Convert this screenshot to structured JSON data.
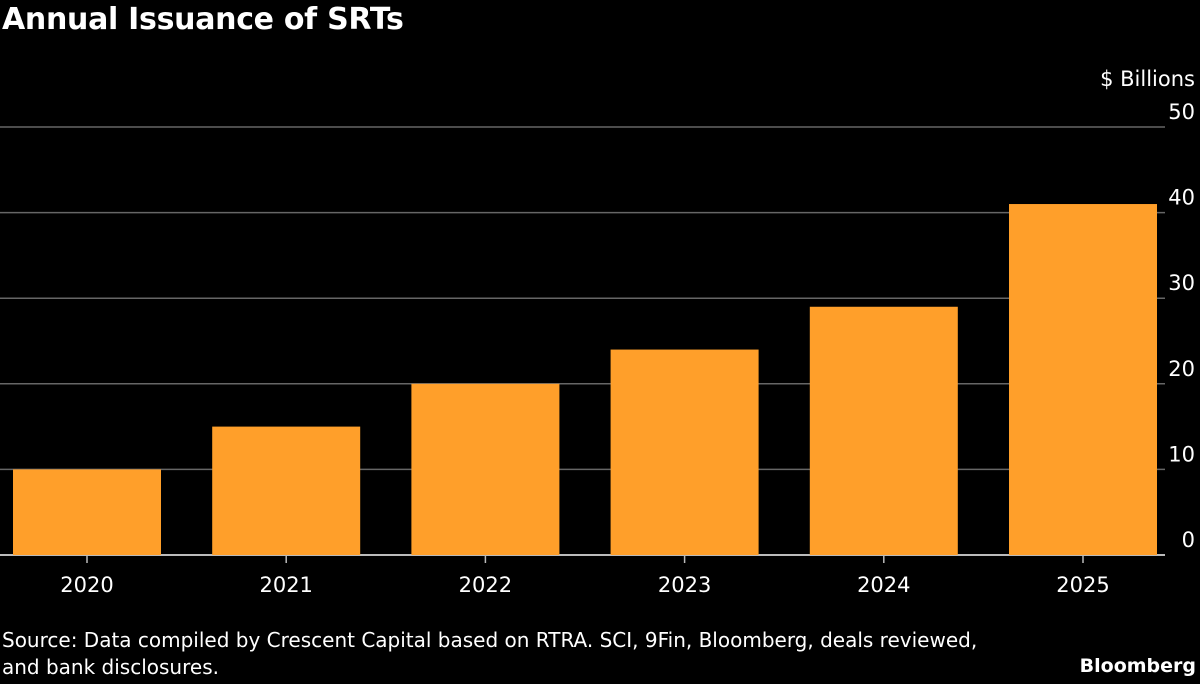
{
  "chart_data": {
    "type": "bar",
    "title": "Annual Issuance of SRTs",
    "ylabel": "$ Billions",
    "categories": [
      "2020",
      "2021",
      "2022",
      "2023",
      "2024",
      "2025"
    ],
    "values": [
      10,
      15,
      20,
      24,
      29,
      41
    ],
    "ylim": [
      0,
      50
    ],
    "yticks": [
      0,
      10,
      20,
      30,
      40,
      50
    ],
    "y_axis_side": "right",
    "grid": true,
    "bar_color": "#ff9f2a",
    "gridline_color": "#666666",
    "background": "#000000"
  },
  "footer": {
    "source": "Source: Data compiled by Crescent Capital based on RTRA. SCI, 9Fin, Bloomberg, deals reviewed, and bank disclosures.",
    "brand": "Bloomberg"
  }
}
